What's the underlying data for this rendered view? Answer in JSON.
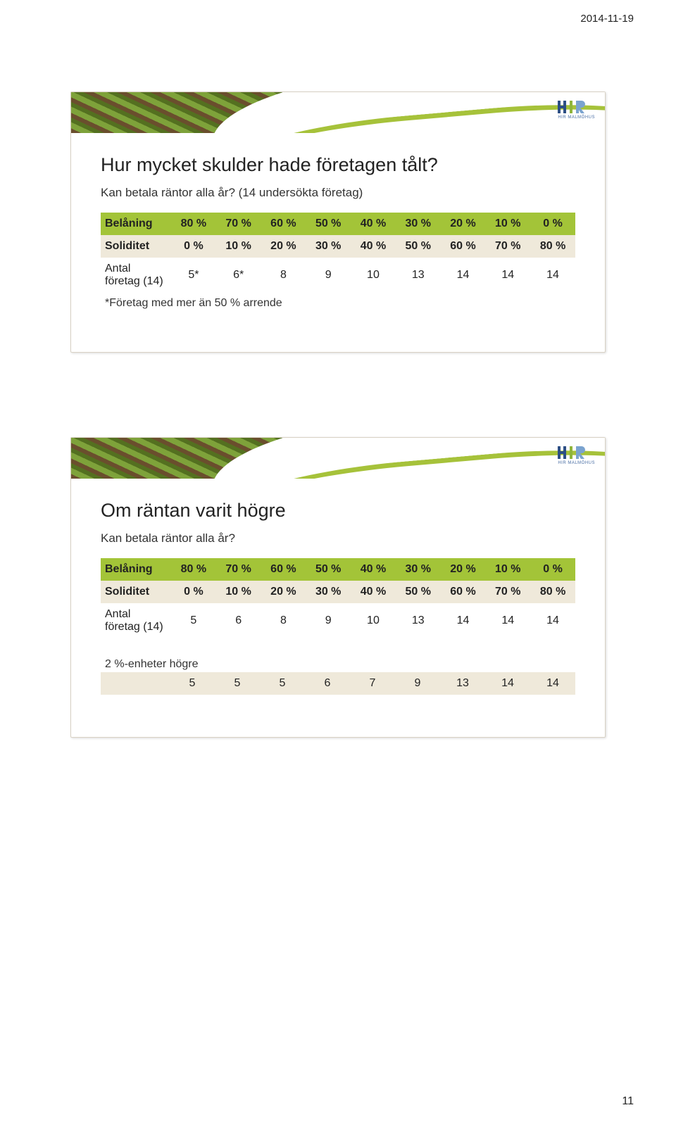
{
  "meta": {
    "date": "2014-11-19",
    "page_number": "11"
  },
  "logo": {
    "text": "HIR",
    "subtitle": "HIR MALMÖHUS",
    "colors": {
      "navy": "#2d4f85",
      "green": "#8fb53b",
      "lightblue": "#7aa3cf"
    }
  },
  "palette": {
    "row_green": "#a3c438",
    "row_beige": "#efe9da",
    "row_white": "#ffffff",
    "text": "#222222"
  },
  "slide1": {
    "title": "Hur mycket skulder hade företagen tålt?",
    "subtitle": "Kan betala räntor alla år? (14 undersökta företag)",
    "table": {
      "header_label": "Belåning",
      "header_cells": [
        "80 %",
        "70 %",
        "60 %",
        "50 %",
        "40 %",
        "30 %",
        "20 %",
        "10 %",
        "0 %"
      ],
      "row2_label": "Soliditet",
      "row2_cells": [
        "0 %",
        "10 %",
        "20 %",
        "30 %",
        "40 %",
        "50 %",
        "60 %",
        "70 %",
        "80 %"
      ],
      "row3_label": "Antal företag (14)",
      "row3_cells": [
        "5*",
        "6*",
        "8",
        "9",
        "10",
        "13",
        "14",
        "14",
        "14"
      ],
      "footnote": "*Företag med mer än 50 % arrende"
    }
  },
  "slide2": {
    "title": "Om räntan varit högre",
    "subtitle": "Kan betala räntor alla år?",
    "table": {
      "header_label": "Belåning",
      "header_cells": [
        "80 %",
        "70 %",
        "60 %",
        "50 %",
        "40 %",
        "30 %",
        "20 %",
        "10 %",
        "0 %"
      ],
      "row2_label": "Soliditet",
      "row2_cells": [
        "0 %",
        "10 %",
        "20 %",
        "30 %",
        "40 %",
        "50 %",
        "60 %",
        "70 %",
        "80 %"
      ],
      "row3_label": "Antal företag (14)",
      "row3_cells": [
        "5",
        "6",
        "8",
        "9",
        "10",
        "13",
        "14",
        "14",
        "14"
      ],
      "extra_label": "2 %-enheter högre",
      "extra_cells": [
        "5",
        "5",
        "5",
        "6",
        "7",
        "9",
        "13",
        "14",
        "14"
      ]
    }
  }
}
